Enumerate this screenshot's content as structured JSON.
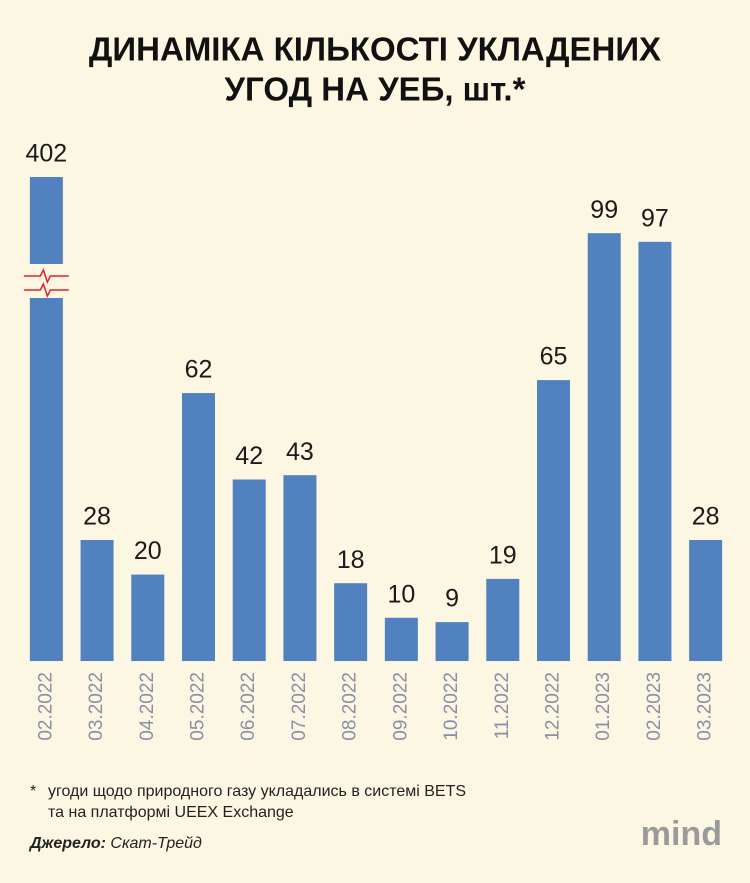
{
  "chart_data": {
    "type": "bar",
    "title": [
      "ДИНАМІКА КІЛЬКОСТІ УКЛАДЕНИХ",
      "УГОД НА УЕБ, шт.*"
    ],
    "categories": [
      "02.2022",
      "03.2022",
      "04.2022",
      "05.2022",
      "06.2022",
      "07.2022",
      "08.2022",
      "09.2022",
      "10.2022",
      "11.2022",
      "12.2022",
      "01.2023",
      "02.2023",
      "03.2023"
    ],
    "values": [
      402,
      28,
      20,
      62,
      42,
      43,
      18,
      10,
      9,
      19,
      65,
      99,
      97,
      28
    ],
    "color": "#5181be",
    "ylim": [
      0,
      112
    ],
    "axis_break": true,
    "break_color": "#e0222a"
  },
  "footnote": {
    "marker": "*",
    "lines": [
      "угоди щодо природного газу укладались в системі BETS",
      "та на платформі UEEX Exchange"
    ]
  },
  "source": {
    "label": "Джерело:",
    "text": "Скат-Трейд"
  },
  "logo": "mind"
}
